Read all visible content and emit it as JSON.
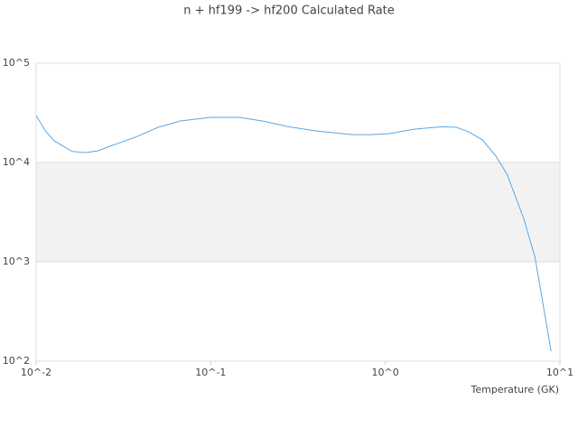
{
  "chart_data": {
    "type": "line",
    "title": "n + hf199 -> hf200 Calculated Rate",
    "x_label": "Temperature (GK)",
    "x": [
      0.01,
      0.0113,
      0.0127,
      0.0161,
      0.0193,
      0.0225,
      0.0275,
      0.037,
      0.05,
      0.067,
      0.1,
      0.146,
      0.197,
      0.28,
      0.4,
      0.65,
      0.82,
      1.04,
      1.48,
      2.1,
      2.55,
      3.0,
      3.6,
      4.3,
      4.98,
      6.2,
      7.2,
      8.9
    ],
    "values": [
      29700,
      20800,
      16500,
      12900,
      12600,
      13100,
      14900,
      18000,
      22600,
      26200,
      28500,
      28500,
      26200,
      22900,
      20800,
      19100,
      19100,
      19500,
      21700,
      22900,
      22600,
      20400,
      16900,
      11600,
      7600,
      2730,
      1110,
      126
    ],
    "color": "#5aa7e6",
    "x_log": true,
    "y_log": true,
    "xlim": [
      0.01,
      10
    ],
    "ylim": [
      100,
      100000
    ],
    "xticks": [
      {
        "value": 0.01,
        "label": "10^-2"
      },
      {
        "value": 0.1,
        "label": "10^-1"
      },
      {
        "value": 1,
        "label": "10^0"
      },
      {
        "value": 10,
        "label": "10^1"
      }
    ],
    "yticks": [
      {
        "value": 100,
        "label": "10^2"
      },
      {
        "value": 1000,
        "label": "10^3"
      },
      {
        "value": 10000,
        "label": "10^4"
      },
      {
        "value": 100000,
        "label": "10^5"
      }
    ],
    "grid": true,
    "alternate_bands": true
  }
}
